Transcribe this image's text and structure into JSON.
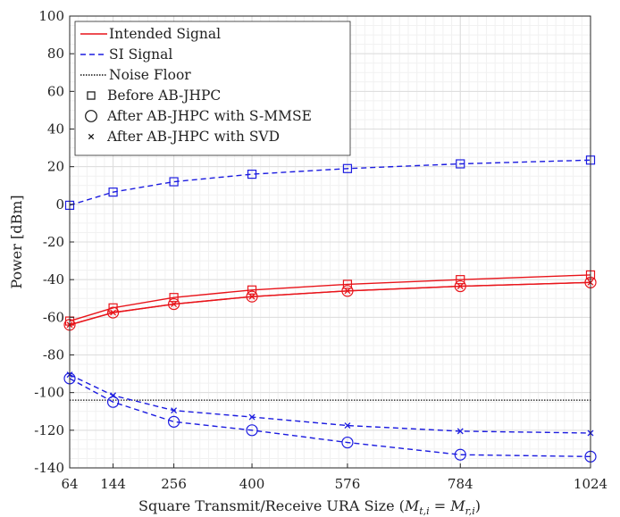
{
  "chart_data": {
    "type": "line",
    "xlabel": "Square Transmit/Receive URA Size (",
    "xlabel_math": {
      "lhs": "M",
      "lhs_sub": "t,i",
      "eq": " = ",
      "rhs": "M",
      "rhs_sub": "r,i",
      "close": ")"
    },
    "ylabel": "Power [dBm]",
    "x_ticks": [
      64,
      144,
      256,
      400,
      576,
      784,
      1024
    ],
    "y_ticks": [
      100,
      80,
      60,
      40,
      20,
      0,
      -20,
      -40,
      -60,
      -80,
      -100,
      -120,
      -140
    ],
    "xlim": [
      64,
      1024
    ],
    "ylim": [
      -140,
      100
    ],
    "grid": true,
    "minor_grid": true,
    "legend_position": "top-left",
    "legend": [
      {
        "label": "Intended Signal",
        "kind": "line",
        "color": "#e8141a",
        "dash": "solid"
      },
      {
        "label": "SI Signal",
        "kind": "line",
        "color": "#1c1ce0",
        "dash": "dashed"
      },
      {
        "label": "Noise Floor",
        "kind": "line",
        "color": "#111111",
        "dash": "dotted"
      },
      {
        "label": "Before AB-JHPC",
        "kind": "marker",
        "marker": "square"
      },
      {
        "label": "After AB-JHPC with S-MMSE",
        "kind": "marker",
        "marker": "circle"
      },
      {
        "label": "After AB-JHPC with SVD",
        "kind": "marker",
        "marker": "cross"
      }
    ],
    "x": [
      64,
      144,
      256,
      400,
      576,
      784,
      1024
    ],
    "series": [
      {
        "key": "intended_before",
        "color": "#e8141a",
        "dash": "solid",
        "marker": "square",
        "values": [
          -62,
          -55,
          -49.5,
          -45.5,
          -42.5,
          -40,
          -37.5
        ]
      },
      {
        "key": "intended_smmse",
        "color": "#e8141a",
        "dash": "solid",
        "marker": "circle",
        "values": [
          -64,
          -57.5,
          -53,
          -49,
          -46,
          -43.5,
          -41.5
        ]
      },
      {
        "key": "intended_svd",
        "color": "#e8141a",
        "dash": "solid",
        "marker": "cross",
        "values": [
          -64,
          -57.5,
          -53,
          -49,
          -46,
          -43.5,
          -41.5
        ]
      },
      {
        "key": "si_before",
        "color": "#1c1ce0",
        "dash": "dashed",
        "marker": "square",
        "values": [
          -0.5,
          6.5,
          12,
          16,
          19,
          21.5,
          23.5
        ]
      },
      {
        "key": "si_smmse",
        "color": "#1c1ce0",
        "dash": "dashed",
        "marker": "circle",
        "values": [
          -92.5,
          -105,
          -115.5,
          -120,
          -126.5,
          -133,
          -134
        ]
      },
      {
        "key": "si_svd",
        "color": "#1c1ce0",
        "dash": "dashed",
        "marker": "cross",
        "values": [
          -90.5,
          -101.5,
          -109.5,
          -113,
          -117.5,
          -120.5,
          -121.5
        ]
      }
    ],
    "noise_floor": {
      "color": "#111111",
      "dash": "dotted",
      "value": -104
    }
  }
}
